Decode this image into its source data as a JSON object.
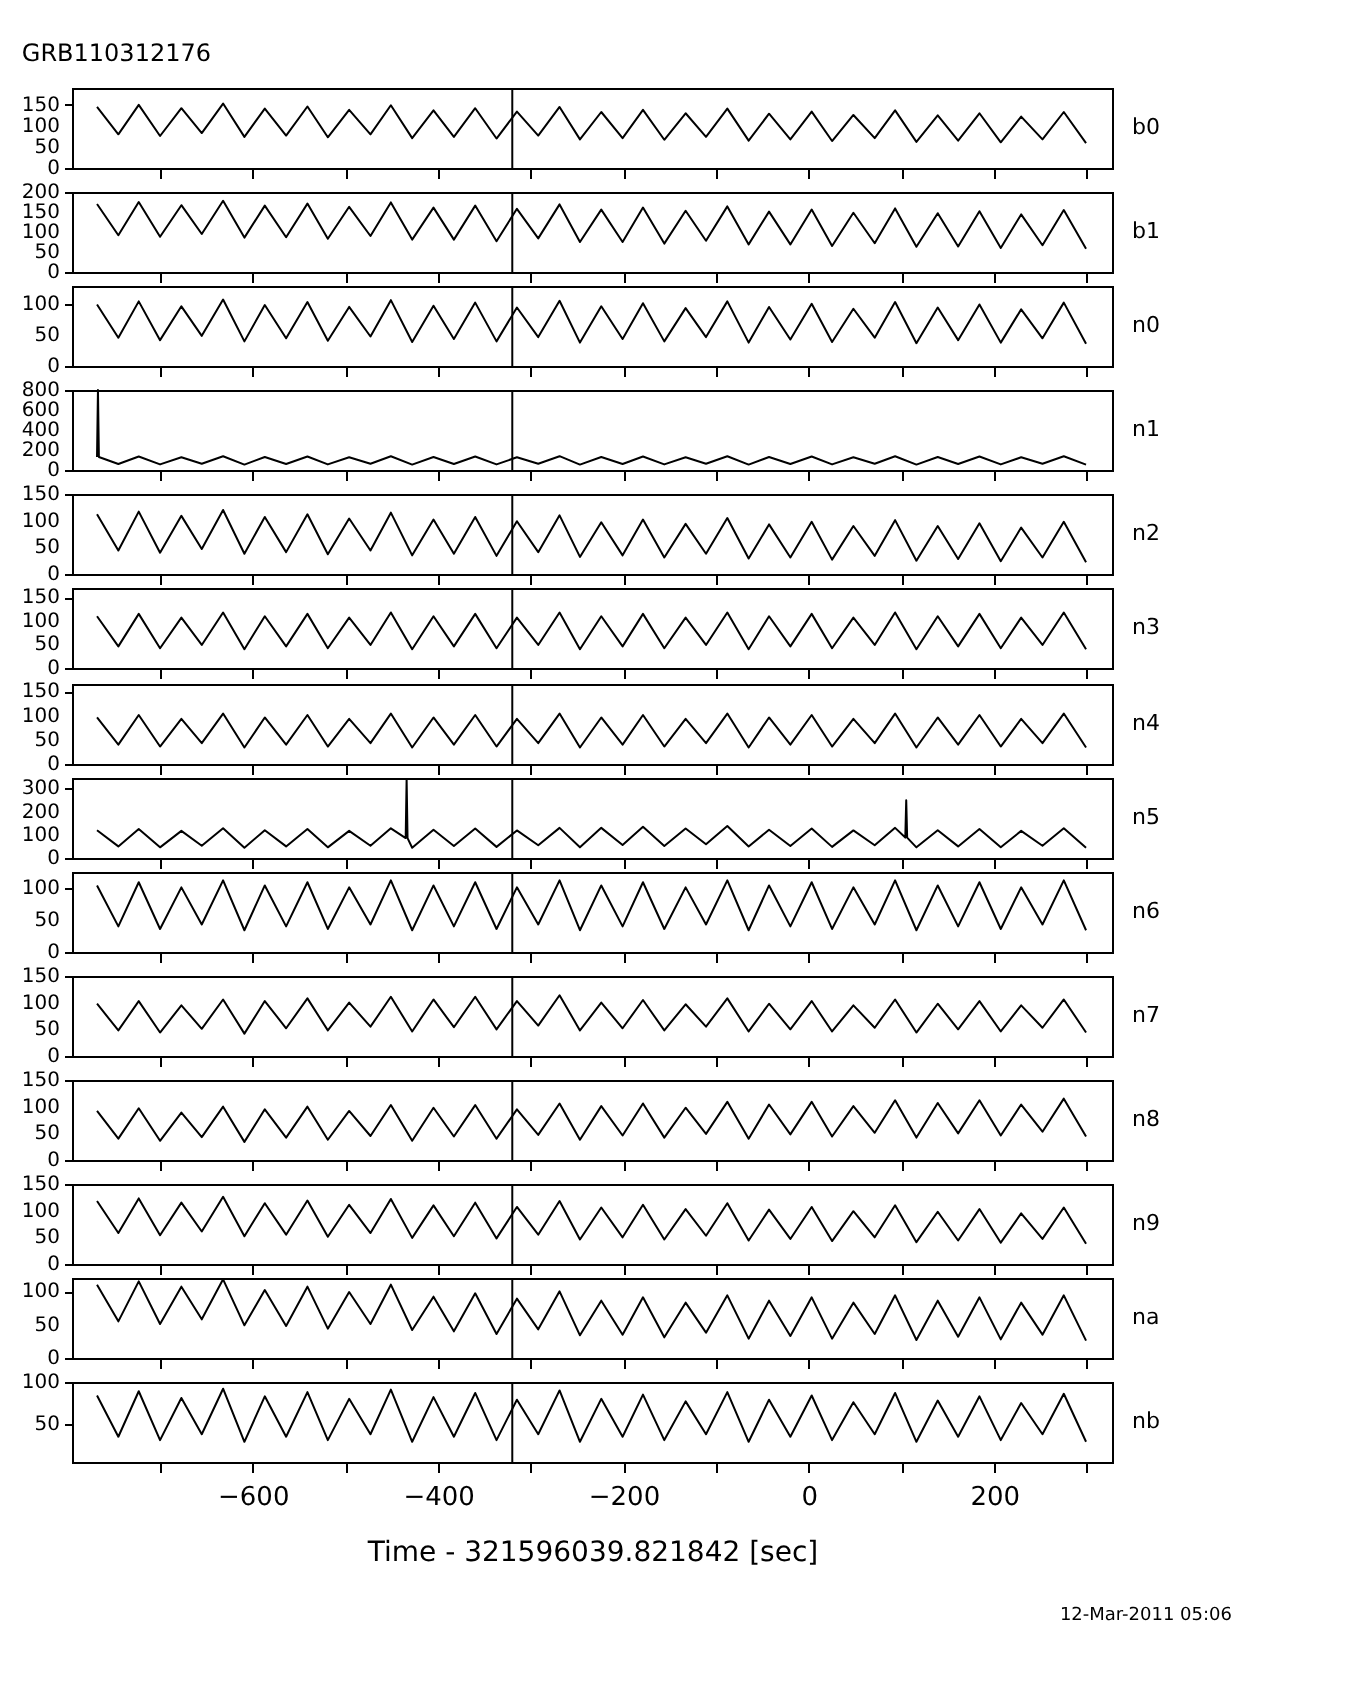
{
  "chart_data": [
    {
      "type": "line",
      "title": "GRB110312176",
      "x": [
        -768,
        -745,
        -723,
        -700,
        -677,
        -655,
        -632,
        -609,
        -587,
        -564,
        -541,
        -519,
        -496,
        -473,
        -451,
        -428,
        -405,
        -383,
        -360,
        -337,
        -315,
        -292,
        -269,
        -247,
        -224,
        -201,
        -179,
        -156,
        -133,
        -111,
        -88,
        -65,
        -43,
        -20,
        3,
        25,
        48,
        71,
        93,
        116,
        139,
        161,
        184,
        207,
        229,
        252,
        275,
        299
      ],
      "series": [
        {
          "name": "b0",
          "color": "#000000",
          "values": [
            145,
            80,
            150,
            76,
            142,
            83,
            153,
            74,
            141,
            77,
            146,
            73,
            138,
            80,
            149,
            71,
            137,
            74,
            142,
            70,
            134,
            77,
            145,
            68,
            133,
            71,
            138,
            67,
            130,
            74,
            141,
            65,
            129,
            68,
            134,
            64,
            126,
            71,
            137,
            62,
            125,
            65,
            130,
            61,
            122,
            68,
            133,
            59
          ]
        }
      ],
      "xlim": [
        -795,
        327
      ],
      "xticks": [
        {
          "value": -700,
          "label": null
        },
        {
          "value": -600,
          "label": null
        },
        {
          "value": -500,
          "label": null
        },
        {
          "value": -400,
          "label": null
        },
        {
          "value": -300,
          "label": null
        },
        {
          "value": -200,
          "label": null
        },
        {
          "value": -100,
          "label": null
        },
        {
          "value": 0,
          "label": null
        },
        {
          "value": 100,
          "label": null
        },
        {
          "value": 200,
          "label": null
        },
        {
          "value": 300,
          "label": null
        }
      ],
      "ylim": [
        0,
        190
      ],
      "yticks": [
        0,
        50,
        100,
        150
      ],
      "tick_labels": "y",
      "ref_lines": [
        {
          "axis": "x",
          "value": -320
        }
      ]
    },
    {
      "type": "line",
      "x": [
        -768,
        -745,
        -723,
        -700,
        -677,
        -655,
        -632,
        -609,
        -587,
        -564,
        -541,
        -519,
        -496,
        -473,
        -451,
        -428,
        -405,
        -383,
        -360,
        -337,
        -315,
        -292,
        -269,
        -247,
        -224,
        -201,
        -179,
        -156,
        -133,
        -111,
        -88,
        -65,
        -43,
        -20,
        3,
        25,
        48,
        71,
        93,
        116,
        139,
        161,
        184,
        207,
        229,
        252,
        275,
        299
      ],
      "series": [
        {
          "name": "b1",
          "color": "#000000",
          "values": [
            170,
            92,
            175,
            88,
            167,
            95,
            178,
            86,
            166,
            87,
            171,
            83,
            163,
            90,
            174,
            81,
            161,
            81,
            166,
            77,
            158,
            84,
            169,
            75,
            156,
            75,
            161,
            71,
            153,
            78,
            164,
            69,
            151,
            69,
            156,
            65,
            148,
            72,
            159,
            63,
            147,
            64,
            152,
            60,
            144,
            67,
            155,
            58
          ]
        }
      ],
      "xlim": [
        -795,
        327
      ],
      "xticks": [
        {
          "value": -700,
          "label": null
        },
        {
          "value": -600,
          "label": null
        },
        {
          "value": -500,
          "label": null
        },
        {
          "value": -400,
          "label": null
        },
        {
          "value": -300,
          "label": null
        },
        {
          "value": -200,
          "label": null
        },
        {
          "value": -100,
          "label": null
        },
        {
          "value": 0,
          "label": null
        },
        {
          "value": 100,
          "label": null
        },
        {
          "value": 200,
          "label": null
        },
        {
          "value": 300,
          "label": null
        }
      ],
      "ylim": [
        0,
        200
      ],
      "yticks": [
        0,
        50,
        100,
        150,
        200
      ],
      "tick_labels": "y",
      "ref_lines": [
        {
          "axis": "x",
          "value": -320
        }
      ]
    },
    {
      "type": "line",
      "x": [
        -768,
        -745,
        -723,
        -700,
        -677,
        -655,
        -632,
        -609,
        -587,
        -564,
        -541,
        -519,
        -496,
        -473,
        -451,
        -428,
        -405,
        -383,
        -360,
        -337,
        -315,
        -292,
        -269,
        -247,
        -224,
        -201,
        -179,
        -156,
        -133,
        -111,
        -88,
        -65,
        -43,
        -20,
        3,
        25,
        48,
        71,
        93,
        116,
        139,
        161,
        184,
        207,
        229,
        252,
        275,
        299
      ],
      "series": [
        {
          "name": "n0",
          "color": "#000000",
          "values": [
            100,
            46,
            105,
            42,
            97,
            49,
            108,
            40,
            99,
            45,
            104,
            41,
            96,
            48,
            107,
            39,
            98,
            44,
            103,
            40,
            95,
            47,
            106,
            38,
            97,
            44,
            102,
            40,
            94,
            47,
            105,
            38,
            96,
            43,
            101,
            39,
            93,
            46,
            104,
            37,
            95,
            42,
            100,
            38,
            92,
            45,
            103,
            36
          ]
        }
      ],
      "xlim": [
        -795,
        327
      ],
      "xticks": [
        {
          "value": -700,
          "label": null
        },
        {
          "value": -600,
          "label": null
        },
        {
          "value": -500,
          "label": null
        },
        {
          "value": -400,
          "label": null
        },
        {
          "value": -300,
          "label": null
        },
        {
          "value": -200,
          "label": null
        },
        {
          "value": -100,
          "label": null
        },
        {
          "value": 0,
          "label": null
        },
        {
          "value": 100,
          "label": null
        },
        {
          "value": 200,
          "label": null
        },
        {
          "value": 300,
          "label": null
        }
      ],
      "ylim": [
        0,
        130
      ],
      "yticks": [
        0,
        50,
        100
      ],
      "tick_labels": "y",
      "ref_lines": [
        {
          "axis": "x",
          "value": -320
        }
      ]
    },
    {
      "type": "line",
      "series": [
        {
          "name": "n1",
          "color": "#000000",
          "x": [
            -768,
            -767,
            -766,
            -745,
            -723,
            -700,
            -677,
            -655,
            -632,
            -609,
            -587,
            -564,
            -541,
            -519,
            -496,
            -473,
            -451,
            -428,
            -405,
            -383,
            -360,
            -337,
            -315,
            -292,
            -269,
            -247,
            -224,
            -201,
            -179,
            -156,
            -133,
            -111,
            -88,
            -65,
            -43,
            -20,
            3,
            25,
            48,
            71,
            93,
            116,
            139,
            161,
            184,
            207,
            229,
            252,
            275,
            299
          ],
          "values": [
            130,
            800,
            130,
            60,
            135,
            56,
            127,
            63,
            138,
            54,
            130,
            60,
            135,
            56,
            127,
            63,
            138,
            54,
            130,
            60,
            135,
            56,
            127,
            63,
            138,
            54,
            130,
            60,
            135,
            56,
            127,
            63,
            138,
            54,
            130,
            60,
            135,
            56,
            127,
            63,
            138,
            54,
            130,
            60,
            135,
            56,
            127,
            63,
            138,
            54
          ]
        }
      ],
      "xlim": [
        -795,
        327
      ],
      "xticks": [
        {
          "value": -700,
          "label": null
        },
        {
          "value": -600,
          "label": null
        },
        {
          "value": -500,
          "label": null
        },
        {
          "value": -400,
          "label": null
        },
        {
          "value": -300,
          "label": null
        },
        {
          "value": -200,
          "label": null
        },
        {
          "value": -100,
          "label": null
        },
        {
          "value": 0,
          "label": null
        },
        {
          "value": 100,
          "label": null
        },
        {
          "value": 200,
          "label": null
        },
        {
          "value": 300,
          "label": null
        }
      ],
      "ylim": [
        0,
        800
      ],
      "yticks": [
        0,
        200,
        400,
        600,
        800
      ],
      "tick_labels": "y",
      "ref_lines": [
        {
          "axis": "x",
          "value": -320
        }
      ]
    },
    {
      "type": "line",
      "x": [
        -768,
        -745,
        -723,
        -700,
        -677,
        -655,
        -632,
        -609,
        -587,
        -564,
        -541,
        -519,
        -496,
        -473,
        -451,
        -428,
        -405,
        -383,
        -360,
        -337,
        -315,
        -292,
        -269,
        -247,
        -224,
        -201,
        -179,
        -156,
        -133,
        -111,
        -88,
        -65,
        -43,
        -20,
        3,
        25,
        48,
        71,
        93,
        116,
        139,
        161,
        184,
        207,
        229,
        252,
        275,
        299
      ],
      "series": [
        {
          "name": "n2",
          "color": "#000000",
          "values": [
            112,
            44,
            117,
            40,
            109,
            47,
            120,
            38,
            107,
            41,
            112,
            37,
            104,
            44,
            115,
            35,
            102,
            38,
            107,
            34,
            99,
            41,
            110,
            32,
            97,
            35,
            102,
            31,
            94,
            38,
            105,
            29,
            93,
            31,
            98,
            27,
            90,
            34,
            101,
            25,
            90,
            28,
            95,
            24,
            87,
            31,
            98,
            22
          ]
        }
      ],
      "xlim": [
        -795,
        327
      ],
      "xticks": [
        {
          "value": -700,
          "label": null
        },
        {
          "value": -600,
          "label": null
        },
        {
          "value": -500,
          "label": null
        },
        {
          "value": -400,
          "label": null
        },
        {
          "value": -300,
          "label": null
        },
        {
          "value": -200,
          "label": null
        },
        {
          "value": -100,
          "label": null
        },
        {
          "value": 0,
          "label": null
        },
        {
          "value": 100,
          "label": null
        },
        {
          "value": 200,
          "label": null
        },
        {
          "value": 300,
          "label": null
        }
      ],
      "ylim": [
        0,
        150
      ],
      "yticks": [
        0,
        50,
        100,
        150
      ],
      "tick_labels": "y",
      "ref_lines": [
        {
          "axis": "x",
          "value": -320
        }
      ]
    },
    {
      "type": "line",
      "x": [
        -768,
        -745,
        -723,
        -700,
        -677,
        -655,
        -632,
        -609,
        -587,
        -564,
        -541,
        -519,
        -496,
        -473,
        -451,
        -428,
        -405,
        -383,
        -360,
        -337,
        -315,
        -292,
        -269,
        -247,
        -224,
        -201,
        -179,
        -156,
        -133,
        -111,
        -88,
        -65,
        -43,
        -20,
        3,
        25,
        48,
        71,
        93,
        116,
        139,
        161,
        184,
        207,
        229,
        252,
        275,
        299
      ],
      "series": [
        {
          "name": "n3",
          "color": "#000000",
          "values": [
            110,
            46,
            115,
            42,
            107,
            49,
            118,
            40,
            110,
            46,
            115,
            42,
            107,
            49,
            118,
            40,
            110,
            46,
            115,
            42,
            107,
            49,
            118,
            40,
            110,
            46,
            115,
            42,
            107,
            49,
            118,
            40,
            110,
            46,
            115,
            42,
            107,
            49,
            118,
            40,
            110,
            46,
            115,
            42,
            107,
            49,
            118,
            40
          ]
        }
      ],
      "xlim": [
        -795,
        327
      ],
      "xticks": [
        {
          "value": -700,
          "label": null
        },
        {
          "value": -600,
          "label": null
        },
        {
          "value": -500,
          "label": null
        },
        {
          "value": -400,
          "label": null
        },
        {
          "value": -300,
          "label": null
        },
        {
          "value": -200,
          "label": null
        },
        {
          "value": -100,
          "label": null
        },
        {
          "value": 0,
          "label": null
        },
        {
          "value": 100,
          "label": null
        },
        {
          "value": 200,
          "label": null
        },
        {
          "value": 300,
          "label": null
        }
      ],
      "ylim": [
        0,
        170
      ],
      "yticks": [
        0,
        50,
        100,
        150
      ],
      "tick_labels": "y",
      "ref_lines": [
        {
          "axis": "x",
          "value": -320
        }
      ]
    },
    {
      "type": "line",
      "x": [
        -768,
        -745,
        -723,
        -700,
        -677,
        -655,
        -632,
        -609,
        -587,
        -564,
        -541,
        -519,
        -496,
        -473,
        -451,
        -428,
        -405,
        -383,
        -360,
        -337,
        -315,
        -292,
        -269,
        -247,
        -224,
        -201,
        -179,
        -156,
        -133,
        -111,
        -88,
        -65,
        -43,
        -20,
        3,
        25,
        48,
        71,
        93,
        116,
        139,
        161,
        184,
        207,
        229,
        252,
        275,
        299
      ],
      "series": [
        {
          "name": "n4",
          "color": "#000000",
          "values": [
            96,
            40,
            101,
            36,
            93,
            43,
            104,
            34,
            96,
            40,
            101,
            36,
            93,
            43,
            104,
            34,
            96,
            40,
            101,
            36,
            93,
            43,
            104,
            34,
            96,
            40,
            101,
            36,
            93,
            43,
            104,
            34,
            96,
            40,
            101,
            36,
            93,
            43,
            104,
            34,
            96,
            40,
            101,
            36,
            93,
            43,
            104,
            34
          ]
        }
      ],
      "xlim": [
        -795,
        327
      ],
      "xticks": [
        {
          "value": -700,
          "label": null
        },
        {
          "value": -600,
          "label": null
        },
        {
          "value": -500,
          "label": null
        },
        {
          "value": -400,
          "label": null
        },
        {
          "value": -300,
          "label": null
        },
        {
          "value": -200,
          "label": null
        },
        {
          "value": -100,
          "label": null
        },
        {
          "value": 0,
          "label": null
        },
        {
          "value": 100,
          "label": null
        },
        {
          "value": 200,
          "label": null
        },
        {
          "value": 300,
          "label": null
        }
      ],
      "ylim": [
        0,
        165
      ],
      "yticks": [
        0,
        50,
        100,
        150
      ],
      "tick_labels": "y",
      "ref_lines": [
        {
          "axis": "x",
          "value": -320
        }
      ]
    },
    {
      "type": "line",
      "series": [
        {
          "name": "n5",
          "color": "#000000",
          "x": [
            -768,
            -745,
            -723,
            -700,
            -677,
            -655,
            -632,
            -609,
            -587,
            -564,
            -541,
            -519,
            -496,
            -473,
            -451,
            -435,
            -434,
            -433,
            -428,
            -405,
            -383,
            -360,
            -337,
            -315,
            -292,
            -269,
            -247,
            -224,
            -201,
            -179,
            -156,
            -133,
            -111,
            -88,
            -65,
            -43,
            -20,
            3,
            25,
            48,
            71,
            93,
            104,
            105,
            106,
            116,
            139,
            161,
            184,
            207,
            229,
            252,
            275,
            299
          ],
          "values": [
            120,
            50,
            125,
            46,
            117,
            53,
            128,
            44,
            120,
            50,
            125,
            46,
            117,
            53,
            128,
            86,
            340,
            86,
            44,
            122,
            52,
            127,
            48,
            119,
            55,
            130,
            46,
            130,
            56,
            135,
            52,
            127,
            59,
            138,
            50,
            122,
            52,
            127,
            48,
            119,
            55,
            130,
            88,
            249,
            88,
            46,
            120,
            50,
            125,
            46,
            117,
            53,
            128,
            44
          ]
        }
      ],
      "xlim": [
        -795,
        327
      ],
      "xticks": [
        {
          "value": -700,
          "label": null
        },
        {
          "value": -600,
          "label": null
        },
        {
          "value": -500,
          "label": null
        },
        {
          "value": -400,
          "label": null
        },
        {
          "value": -300,
          "label": null
        },
        {
          "value": -200,
          "label": null
        },
        {
          "value": -100,
          "label": null
        },
        {
          "value": 0,
          "label": null
        },
        {
          "value": 100,
          "label": null
        },
        {
          "value": 200,
          "label": null
        },
        {
          "value": 300,
          "label": null
        }
      ],
      "ylim": [
        0,
        345
      ],
      "yticks": [
        0,
        100,
        200,
        300
      ],
      "tick_labels": "y",
      "ref_lines": [
        {
          "axis": "x",
          "value": -320
        }
      ]
    },
    {
      "type": "line",
      "x": [
        -768,
        -745,
        -723,
        -700,
        -677,
        -655,
        -632,
        -609,
        -587,
        -564,
        -541,
        -519,
        -496,
        -473,
        -451,
        -428,
        -405,
        -383,
        -360,
        -337,
        -315,
        -292,
        -269,
        -247,
        -224,
        -201,
        -179,
        -156,
        -133,
        -111,
        -88,
        -65,
        -43,
        -20,
        3,
        25,
        48,
        71,
        93,
        116,
        139,
        161,
        184,
        207,
        229,
        252,
        275,
        299
      ],
      "series": [
        {
          "name": "n6",
          "color": "#000000",
          "values": [
            104,
            40,
            109,
            36,
            101,
            43,
            112,
            34,
            104,
            40,
            109,
            36,
            101,
            43,
            112,
            34,
            104,
            40,
            109,
            36,
            101,
            43,
            112,
            34,
            104,
            40,
            109,
            36,
            101,
            43,
            112,
            34,
            104,
            40,
            109,
            36,
            101,
            43,
            112,
            34,
            104,
            40,
            109,
            36,
            101,
            43,
            112,
            34
          ]
        }
      ],
      "xlim": [
        -795,
        327
      ],
      "xticks": [
        {
          "value": -700,
          "label": null
        },
        {
          "value": -600,
          "label": null
        },
        {
          "value": -500,
          "label": null
        },
        {
          "value": -400,
          "label": null
        },
        {
          "value": -300,
          "label": null
        },
        {
          "value": -200,
          "label": null
        },
        {
          "value": -100,
          "label": null
        },
        {
          "value": 0,
          "label": null
        },
        {
          "value": 100,
          "label": null
        },
        {
          "value": 200,
          "label": null
        },
        {
          "value": 300,
          "label": null
        }
      ],
      "ylim": [
        0,
        125
      ],
      "yticks": [
        0,
        50,
        100
      ],
      "tick_labels": "y",
      "ref_lines": [
        {
          "axis": "x",
          "value": -320
        }
      ]
    },
    {
      "type": "line",
      "x": [
        -768,
        -745,
        -723,
        -700,
        -677,
        -655,
        -632,
        -609,
        -587,
        -564,
        -541,
        -519,
        -496,
        -473,
        -451,
        -428,
        -405,
        -383,
        -360,
        -337,
        -315,
        -292,
        -269,
        -247,
        -224,
        -201,
        -179,
        -156,
        -133,
        -111,
        -88,
        -65,
        -43,
        -20,
        3,
        25,
        48,
        71,
        93,
        116,
        139,
        161,
        184,
        207,
        229,
        252,
        275,
        299
      ],
      "series": [
        {
          "name": "n7",
          "color": "#000000",
          "values": [
            98,
            48,
            103,
            44,
            95,
            51,
            106,
            42,
            103,
            52,
            108,
            48,
            100,
            55,
            111,
            46,
            106,
            54,
            111,
            50,
            103,
            57,
            114,
            48,
            100,
            52,
            105,
            48,
            97,
            55,
            108,
            46,
            98,
            50,
            103,
            46,
            95,
            53,
            106,
            44,
            98,
            50,
            103,
            46,
            95,
            53,
            106,
            44
          ]
        }
      ],
      "xlim": [
        -795,
        327
      ],
      "xticks": [
        {
          "value": -700,
          "label": null
        },
        {
          "value": -600,
          "label": null
        },
        {
          "value": -500,
          "label": null
        },
        {
          "value": -400,
          "label": null
        },
        {
          "value": -300,
          "label": null
        },
        {
          "value": -200,
          "label": null
        },
        {
          "value": -100,
          "label": null
        },
        {
          "value": 0,
          "label": null
        },
        {
          "value": 100,
          "label": null
        },
        {
          "value": 200,
          "label": null
        },
        {
          "value": 300,
          "label": null
        }
      ],
      "ylim": [
        0,
        150
      ],
      "yticks": [
        0,
        50,
        100,
        150
      ],
      "tick_labels": "y",
      "ref_lines": [
        {
          "axis": "x",
          "value": -320
        }
      ]
    },
    {
      "type": "line",
      "x": [
        -768,
        -745,
        -723,
        -700,
        -677,
        -655,
        -632,
        -609,
        -587,
        -564,
        -541,
        -519,
        -496,
        -473,
        -451,
        -428,
        -405,
        -383,
        -360,
        -337,
        -315,
        -292,
        -269,
        -247,
        -224,
        -201,
        -179,
        -156,
        -133,
        -111,
        -88,
        -65,
        -43,
        -20,
        3,
        25,
        48,
        71,
        93,
        116,
        139,
        161,
        184,
        207,
        229,
        252,
        275,
        299
      ],
      "series": [
        {
          "name": "n8",
          "color": "#000000",
          "values": [
            92,
            40,
            97,
            36,
            89,
            43,
            100,
            34,
            95,
            42,
            100,
            38,
            92,
            45,
            103,
            36,
            98,
            44,
            103,
            40,
            95,
            47,
            106,
            38,
            101,
            46,
            106,
            42,
            98,
            49,
            109,
            40,
            104,
            48,
            109,
            44,
            101,
            51,
            112,
            42,
            107,
            50,
            112,
            46,
            104,
            53,
            115,
            44
          ]
        }
      ],
      "xlim": [
        -795,
        327
      ],
      "xticks": [
        {
          "value": -700,
          "label": null
        },
        {
          "value": -600,
          "label": null
        },
        {
          "value": -500,
          "label": null
        },
        {
          "value": -400,
          "label": null
        },
        {
          "value": -300,
          "label": null
        },
        {
          "value": -200,
          "label": null
        },
        {
          "value": -100,
          "label": null
        },
        {
          "value": 0,
          "label": null
        },
        {
          "value": 100,
          "label": null
        },
        {
          "value": 200,
          "label": null
        },
        {
          "value": 300,
          "label": null
        }
      ],
      "ylim": [
        0,
        150
      ],
      "yticks": [
        0,
        50,
        100,
        150
      ],
      "tick_labels": "y",
      "ref_lines": [
        {
          "axis": "x",
          "value": -320
        }
      ]
    },
    {
      "type": "line",
      "x": [
        -768,
        -745,
        -723,
        -700,
        -677,
        -655,
        -632,
        -609,
        -587,
        -564,
        -541,
        -519,
        -496,
        -473,
        -451,
        -428,
        -405,
        -383,
        -360,
        -337,
        -315,
        -292,
        -269,
        -247,
        -224,
        -201,
        -179,
        -156,
        -133,
        -111,
        -88,
        -65,
        -43,
        -20,
        3,
        25,
        48,
        71,
        93,
        116,
        139,
        161,
        184,
        207,
        229,
        252,
        275,
        299
      ],
      "series": [
        {
          "name": "n9",
          "color": "#000000",
          "values": [
            118,
            58,
            123,
            54,
            115,
            61,
            126,
            52,
            114,
            55,
            119,
            51,
            111,
            58,
            122,
            49,
            110,
            52,
            115,
            48,
            107,
            55,
            118,
            46,
            106,
            50,
            111,
            46,
            103,
            53,
            114,
            44,
            102,
            47,
            107,
            43,
            99,
            50,
            110,
            41,
            98,
            44,
            103,
            40,
            95,
            47,
            106,
            38
          ]
        }
      ],
      "xlim": [
        -795,
        327
      ],
      "xticks": [
        {
          "value": -700,
          "label": null
        },
        {
          "value": -600,
          "label": null
        },
        {
          "value": -500,
          "label": null
        },
        {
          "value": -400,
          "label": null
        },
        {
          "value": -300,
          "label": null
        },
        {
          "value": -200,
          "label": null
        },
        {
          "value": -100,
          "label": null
        },
        {
          "value": 0,
          "label": null
        },
        {
          "value": 100,
          "label": null
        },
        {
          "value": 200,
          "label": null
        },
        {
          "value": 300,
          "label": null
        }
      ],
      "ylim": [
        0,
        150
      ],
      "yticks": [
        0,
        50,
        100,
        150
      ],
      "tick_labels": "y",
      "ref_lines": [
        {
          "axis": "x",
          "value": -320
        }
      ]
    },
    {
      "type": "line",
      "x": [
        -768,
        -745,
        -723,
        -700,
        -677,
        -655,
        -632,
        -609,
        -587,
        -564,
        -541,
        -519,
        -496,
        -473,
        -451,
        -428,
        -405,
        -383,
        -360,
        -337,
        -315,
        -292,
        -269,
        -247,
        -224,
        -201,
        -179,
        -156,
        -133,
        -111,
        -88,
        -65,
        -43,
        -20,
        3,
        25,
        48,
        71,
        93,
        116,
        139,
        161,
        184,
        207,
        229,
        252,
        275,
        299
      ],
      "series": [
        {
          "name": "na",
          "color": "#000000",
          "values": [
            110,
            55,
            115,
            51,
            107,
            58,
            118,
            49,
            102,
            48,
            107,
            44,
            99,
            51,
            110,
            42,
            92,
            40,
            97,
            36,
            89,
            43,
            100,
            34,
            86,
            35,
            91,
            31,
            83,
            38,
            94,
            29,
            86,
            33,
            91,
            29,
            83,
            36,
            94,
            27,
            86,
            32,
            91,
            28,
            83,
            35,
            94,
            26
          ]
        }
      ],
      "xlim": [
        -795,
        327
      ],
      "xticks": [
        {
          "value": -700,
          "label": null
        },
        {
          "value": -600,
          "label": null
        },
        {
          "value": -500,
          "label": null
        },
        {
          "value": -400,
          "label": null
        },
        {
          "value": -300,
          "label": null
        },
        {
          "value": -200,
          "label": null
        },
        {
          "value": -100,
          "label": null
        },
        {
          "value": 0,
          "label": null
        },
        {
          "value": 100,
          "label": null
        },
        {
          "value": 200,
          "label": null
        },
        {
          "value": 300,
          "label": null
        }
      ],
      "ylim": [
        0,
        120
      ],
      "yticks": [
        0,
        50,
        100
      ],
      "tick_labels": "y",
      "ref_lines": [
        {
          "axis": "x",
          "value": -320
        }
      ]
    },
    {
      "type": "line",
      "xlabel": "Time - 321596039.821842 [sec]",
      "annotations": [
        "12-Mar-2011 05:06"
      ],
      "x": [
        -768,
        -745,
        -723,
        -700,
        -677,
        -655,
        -632,
        -609,
        -587,
        -564,
        -541,
        -519,
        -496,
        -473,
        -451,
        -428,
        -405,
        -383,
        -360,
        -337,
        -315,
        -292,
        -269,
        -247,
        -224,
        -201,
        -179,
        -156,
        -133,
        -111,
        -88,
        -65,
        -43,
        -20,
        3,
        25,
        48,
        71,
        93,
        116,
        139,
        161,
        184,
        207,
        229,
        252,
        275,
        299
      ],
      "series": [
        {
          "name": "nb",
          "color": "#000000",
          "values": [
            84,
            35,
            89,
            31,
            81,
            38,
            92,
            29,
            83,
            35,
            88,
            31,
            80,
            38,
            91,
            29,
            82,
            35,
            87,
            31,
            79,
            38,
            90,
            29,
            80,
            35,
            85,
            31,
            77,
            38,
            88,
            29,
            79,
            35,
            84,
            31,
            76,
            38,
            87,
            29,
            78,
            35,
            83,
            31,
            75,
            38,
            86,
            29
          ]
        }
      ],
      "xlim": [
        -795,
        327
      ],
      "xticks": [
        {
          "value": -700,
          "label": null
        },
        -600,
        {
          "value": -500,
          "label": null
        },
        -400,
        {
          "value": -300,
          "label": null
        },
        -200,
        {
          "value": -100,
          "label": null
        },
        0,
        {
          "value": 100,
          "label": null
        },
        200,
        {
          "value": 300,
          "label": null
        }
      ],
      "ylim": [
        5,
        100
      ],
      "yticks": [
        50,
        100
      ],
      "ref_lines": [
        {
          "axis": "x",
          "value": -320
        }
      ]
    }
  ]
}
